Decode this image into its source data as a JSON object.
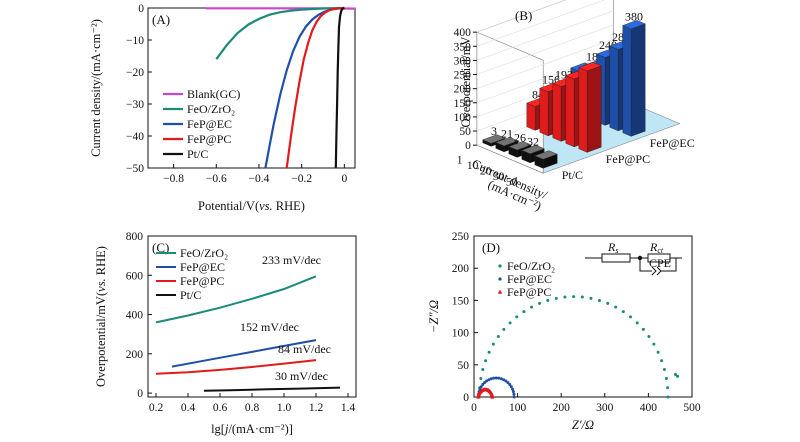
{
  "chart_data": [
    {
      "id": "A",
      "type": "line",
      "panel_label": "(A)",
      "xlabel": "Potential/V(",
      "xlabel_ref": "vs.",
      "xlabel_tail": " RHE)",
      "ylabel": "Current density/(mA·cm⁻²)",
      "xlim": [
        -0.92,
        0.05
      ],
      "ylim": [
        -50,
        0
      ],
      "xticks": [
        -0.8,
        -0.6,
        -0.4,
        -0.2,
        0
      ],
      "xtick_labels": [
        "−0.8",
        "−0.6",
        "−0.4",
        "−0.2",
        "0"
      ],
      "yticks": [
        0,
        -10,
        -20,
        -30,
        -40,
        -50
      ],
      "ytick_labels": [
        "0",
        "−10",
        "−20",
        "−30",
        "−40",
        "−50"
      ],
      "series": [
        {
          "name": "Blank(GC)",
          "color": "#cc44cc",
          "x": [
            -0.65,
            -0.5,
            -0.3,
            -0.1,
            0.0,
            0.05
          ],
          "y": [
            -0.1,
            -0.1,
            -0.1,
            -0.1,
            -0.15,
            -0.2
          ]
        },
        {
          "name": "FeO/ZrO₂",
          "color": "#1a8a7a",
          "x": [
            -0.6,
            -0.55,
            -0.5,
            -0.45,
            -0.4,
            -0.35,
            -0.3,
            -0.25,
            -0.2,
            -0.15,
            -0.1,
            -0.05,
            0.0
          ],
          "y": [
            -16,
            -11.5,
            -7.8,
            -5.2,
            -3.4,
            -2.1,
            -1.3,
            -0.8,
            -0.5,
            -0.3,
            -0.15,
            -0.05,
            0
          ]
        },
        {
          "name": "FeP@EC",
          "color": "#1f4fa8",
          "x": [
            -0.37,
            -0.35,
            -0.33,
            -0.3,
            -0.27,
            -0.24,
            -0.21,
            -0.18,
            -0.15,
            -0.12,
            -0.09,
            -0.06,
            -0.03,
            0.0
          ],
          "y": [
            -50,
            -43,
            -36,
            -27,
            -19.5,
            -13.5,
            -9,
            -5.8,
            -3.6,
            -2.1,
            -1.1,
            -0.5,
            -0.15,
            0
          ]
        },
        {
          "name": "FeP@PC",
          "color": "#e01b1b",
          "x": [
            -0.27,
            -0.25,
            -0.23,
            -0.21,
            -0.19,
            -0.17,
            -0.15,
            -0.13,
            -0.11,
            -0.09,
            -0.07,
            -0.05,
            -0.03,
            0.0
          ],
          "y": [
            -50,
            -40,
            -31,
            -23,
            -16,
            -11,
            -7,
            -4.3,
            -2.5,
            -1.4,
            -0.7,
            -0.3,
            -0.1,
            0
          ]
        },
        {
          "name": "Pt/C",
          "color": "#111111",
          "x": [
            -0.04,
            -0.037,
            -0.034,
            -0.031,
            -0.028,
            -0.025,
            -0.02,
            -0.015,
            -0.01,
            0.0
          ],
          "y": [
            -50,
            -40,
            -30,
            -20,
            -12,
            -6,
            -2.5,
            -1,
            -0.3,
            0
          ]
        }
      ]
    },
    {
      "id": "B",
      "type": "bar3d",
      "panel_label": "(B)",
      "zlabel": "Overpotential/mV",
      "zticks": [
        0,
        50,
        100,
        150,
        200,
        250,
        300,
        350,
        400
      ],
      "zmax": 400,
      "xlabel": "Current density/",
      "xlabel2": "(mA·cm⁻²)",
      "categories": [
        "1",
        "10",
        "20",
        "30",
        "50"
      ],
      "series": [
        {
          "name": "Pt/C",
          "color": "#111111",
          "values": [
            3,
            21,
            26,
            32,
            32
          ],
          "labels": [
            "3",
            "21",
            "26",
            "32",
            ""
          ]
        },
        {
          "name": "FeP@PC",
          "color": "#e01b1b",
          "values": [
            84,
            156,
            193,
            240,
            288
          ],
          "labels": [
            "84",
            "156",
            "193",
            "",
            ""
          ]
        },
        {
          "name": "FeP@EC",
          "color": "#1f4fa8",
          "values": [
            152,
            180,
            240,
            288,
            380
          ],
          "labels": [
            "",
            "180",
            "240",
            "288",
            "380"
          ]
        }
      ]
    },
    {
      "id": "C",
      "type": "line",
      "panel_label": "(C)",
      "xlabel": "lg[j/(mA·cm⁻²)]",
      "ylabel": "Overpotential/mV(",
      "ylabel_ref": "vs.",
      "ylabel_tail": " RHE)",
      "xlim": [
        0.15,
        1.45
      ],
      "ylim": [
        -20,
        800
      ],
      "xticks": [
        0.2,
        0.4,
        0.6,
        0.8,
        1.0,
        1.2,
        1.4
      ],
      "xtick_labels": [
        "0.2",
        "0.4",
        "0.6",
        "0.8",
        "1.0",
        "1.2",
        "1.4"
      ],
      "yticks": [
        0,
        200,
        400,
        600,
        800
      ],
      "ytick_labels": [
        "0",
        "200",
        "400",
        "600",
        "800"
      ],
      "series": [
        {
          "name": "FeO/ZrO₂",
          "color": "#1a8a7a",
          "x": [
            0.2,
            0.4,
            0.6,
            0.8,
            1.0,
            1.2
          ],
          "y": [
            360,
            395,
            435,
            480,
            530,
            595
          ],
          "tafel": "233 mV/dec"
        },
        {
          "name": "FeP@EC",
          "color": "#1f4fa8",
          "x": [
            0.3,
            0.5,
            0.7,
            0.9,
            1.1,
            1.2
          ],
          "y": [
            135,
            165,
            195,
            225,
            255,
            270
          ],
          "tafel": "152 mV/dec"
        },
        {
          "name": "FeP@PC",
          "color": "#e01b1b",
          "x": [
            0.2,
            0.4,
            0.6,
            0.8,
            1.0,
            1.2
          ],
          "y": [
            98,
            106,
            118,
            133,
            150,
            168
          ],
          "tafel": "84 mV/dec"
        },
        {
          "name": "Pt/C",
          "color": "#111111",
          "x": [
            0.5,
            0.7,
            0.9,
            1.1,
            1.35
          ],
          "y": [
            12,
            15,
            19,
            23,
            28
          ],
          "tafel": "30 mV/dec"
        }
      ]
    },
    {
      "id": "D",
      "type": "scatter",
      "panel_label": "(D)",
      "xlabel": "Z′/Ω",
      "ylabel": "−Z″/Ω",
      "xlim": [
        0,
        500
      ],
      "ylim": [
        0,
        250
      ],
      "xticks": [
        0,
        100,
        200,
        300,
        400,
        500
      ],
      "xtick_labels": [
        "0",
        "100",
        "200",
        "300",
        "400",
        "500"
      ],
      "yticks": [
        0,
        50,
        100,
        150,
        200,
        250
      ],
      "ytick_labels": [
        "0",
        "50",
        "100",
        "150",
        "200",
        "250"
      ],
      "series": [
        {
          "name": "FeO/ZrO₂",
          "color": "#1a8a7a",
          "marker": "dot",
          "R0": 12,
          "R1": 445,
          "tail": [
            [
              462,
              35
            ],
            [
              467,
              32
            ]
          ]
        },
        {
          "name": "FeP@EC",
          "color": "#1f4fa8",
          "marker": "dot",
          "R0": 10,
          "R1": 92,
          "tail": []
        },
        {
          "name": "FeP@PC",
          "color": "#e01b1b",
          "marker": "triangle",
          "R0": 10,
          "R1": 42,
          "tail": []
        }
      ],
      "circuit": {
        "r1": "R",
        "r1_sub": "s",
        "r2": "R",
        "r2_sub": "ct",
        "cpe": "CPE"
      }
    }
  ]
}
